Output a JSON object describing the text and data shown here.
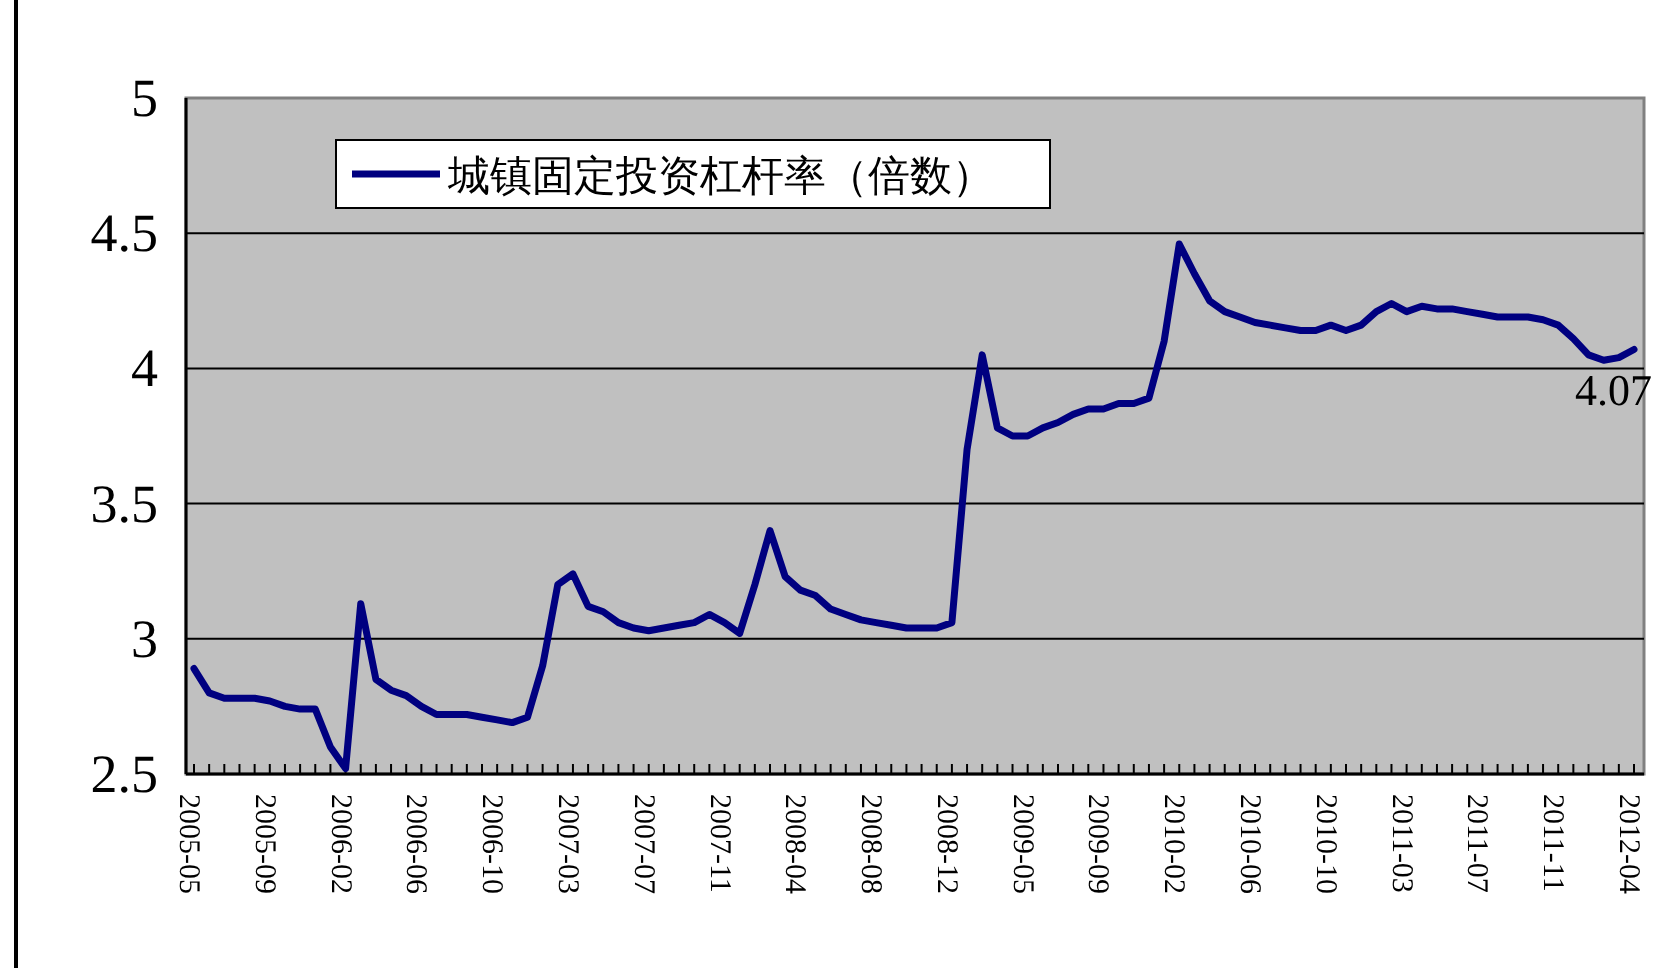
{
  "chart_data": {
    "type": "line",
    "categories": [
      "2005-05",
      null,
      null,
      null,
      null,
      "2005-09",
      null,
      null,
      null,
      null,
      "2006-02",
      null,
      null,
      null,
      null,
      "2006-06",
      null,
      null,
      null,
      null,
      "2006-10",
      null,
      null,
      null,
      null,
      "2007-03",
      null,
      null,
      null,
      null,
      "2007-07",
      null,
      null,
      null,
      null,
      "2007-11",
      null,
      null,
      null,
      null,
      "2008-04",
      null,
      null,
      null,
      null,
      "2008-08",
      null,
      null,
      null,
      null,
      "2008-12",
      null,
      null,
      null,
      null,
      "2009-05",
      null,
      null,
      null,
      null,
      "2009-09",
      null,
      null,
      null,
      null,
      "2010-02",
      null,
      null,
      null,
      null,
      "2010-06",
      null,
      null,
      null,
      null,
      "2010-10",
      null,
      null,
      null,
      null,
      "2011-03",
      null,
      null,
      null,
      null,
      "2011-07",
      null,
      null,
      null,
      null,
      "2011-11",
      null,
      null,
      null,
      null,
      "2012-04"
    ],
    "series": [
      {
        "name": "城镇固定投资杠杆率（倍数）",
        "color": "#000080",
        "values": [
          2.89,
          2.8,
          2.78,
          2.78,
          2.78,
          2.77,
          2.75,
          2.74,
          2.74,
          2.6,
          2.52,
          3.13,
          2.85,
          2.81,
          2.79,
          2.75,
          2.72,
          2.72,
          2.72,
          2.71,
          2.7,
          2.69,
          2.71,
          2.9,
          3.2,
          3.24,
          3.12,
          3.1,
          3.06,
          3.04,
          3.03,
          3.04,
          3.05,
          3.06,
          3.09,
          3.06,
          3.02,
          3.2,
          3.4,
          3.23,
          3.18,
          3.16,
          3.11,
          3.09,
          3.07,
          3.06,
          3.05,
          3.04,
          3.04,
          3.04,
          3.06,
          3.7,
          4.05,
          3.78,
          3.75,
          3.75,
          3.78,
          3.8,
          3.83,
          3.85,
          3.85,
          3.87,
          3.87,
          3.89,
          4.1,
          4.46,
          4.35,
          4.25,
          4.21,
          4.19,
          4.17,
          4.16,
          4.15,
          4.14,
          4.14,
          4.16,
          4.14,
          4.16,
          4.21,
          4.24,
          4.21,
          4.23,
          4.22,
          4.22,
          4.21,
          4.2,
          4.19,
          4.19,
          4.19,
          4.18,
          4.16,
          4.11,
          4.05,
          4.03,
          4.04,
          4.07
        ]
      }
    ],
    "ylim": [
      2.5,
      5
    ],
    "yticks": [
      2.5,
      3,
      3.5,
      4,
      4.5,
      5
    ],
    "grid": "y",
    "legend": "top left",
    "marker": "none",
    "line_style": "solid",
    "annotations": [
      {
        "text": "4.07",
        "x": "2012-04",
        "y": 4.07
      }
    ]
  }
}
